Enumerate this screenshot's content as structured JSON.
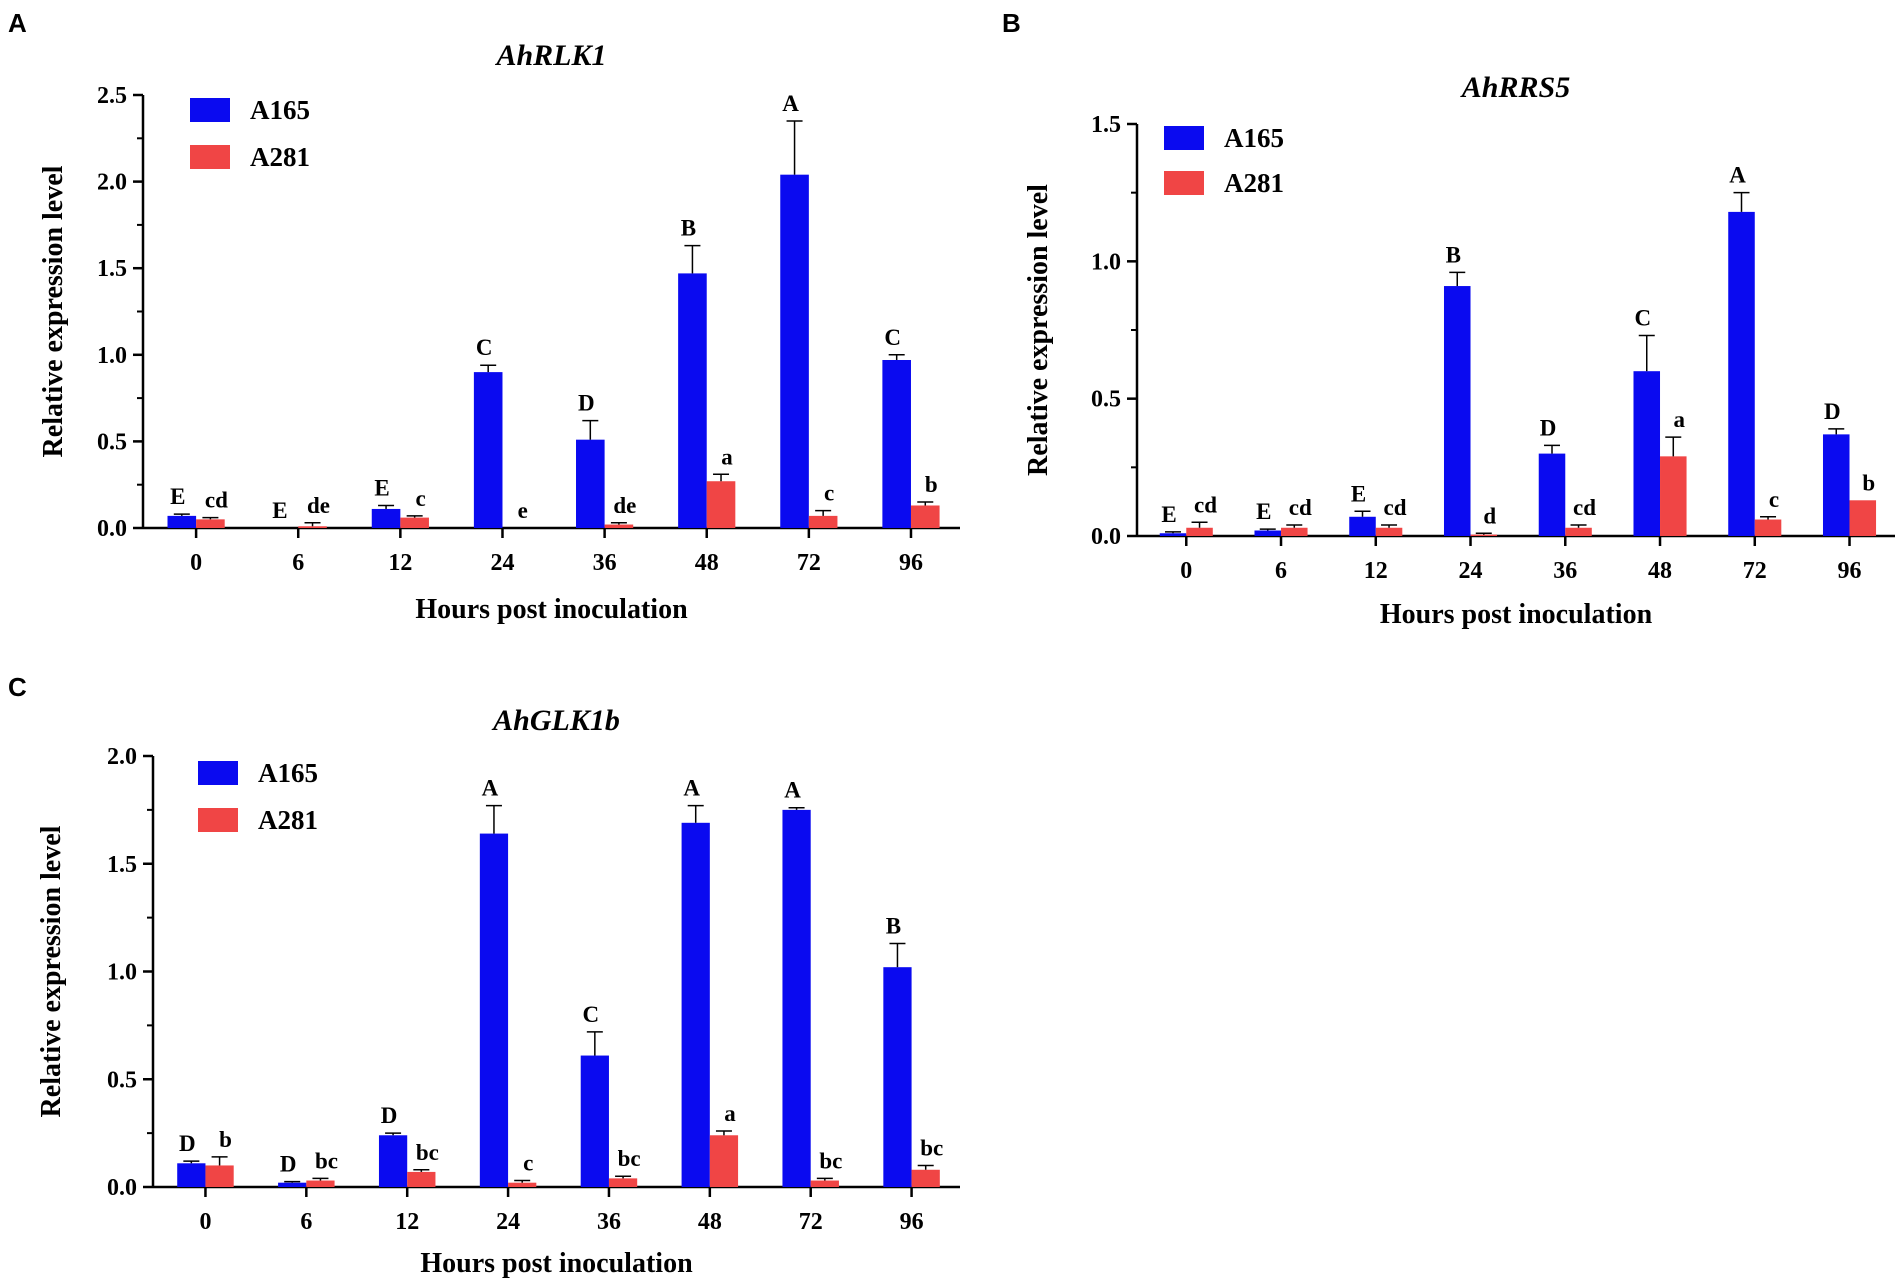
{
  "colors": {
    "A165": "#0a0af0",
    "A281": "#f04545",
    "axis": "#000000"
  },
  "chart_data": [
    {
      "panel": "A",
      "type": "bar",
      "title": "AhRLK1",
      "xlabel": "Hours post inoculation",
      "ylabel": "Relative expression level",
      "ylim": [
        0,
        2.5
      ],
      "yticks": [
        "0.0",
        "0.5",
        "1.0",
        "1.5",
        "2.0",
        "2.5"
      ],
      "categories": [
        "0",
        "6",
        "12",
        "24",
        "36",
        "48",
        "72",
        "96"
      ],
      "legend": "top-left",
      "series": [
        {
          "name": "A165",
          "values": [
            0.07,
            0.0,
            0.11,
            0.9,
            0.51,
            1.47,
            2.04,
            0.97
          ],
          "errors": [
            0.01,
            0.0,
            0.02,
            0.04,
            0.11,
            0.16,
            0.31,
            0.03
          ],
          "labels": [
            "E",
            "E",
            "E",
            "C",
            "D",
            "B",
            "A",
            "C"
          ]
        },
        {
          "name": "A281",
          "values": [
            0.05,
            0.01,
            0.06,
            0.0,
            0.02,
            0.27,
            0.07,
            0.13
          ],
          "errors": [
            0.01,
            0.02,
            0.01,
            0.0,
            0.01,
            0.04,
            0.03,
            0.02
          ],
          "labels": [
            "cd",
            "de",
            "c",
            "e",
            "de",
            "a",
            "c",
            "b"
          ]
        }
      ]
    },
    {
      "panel": "B",
      "type": "bar",
      "title": "AhRRS5",
      "xlabel": "Hours post inoculation",
      "ylabel": "Relative expression level",
      "ylim": [
        0,
        1.5
      ],
      "yticks": [
        "0.0",
        "0.5",
        "1.0",
        "1.5"
      ],
      "categories": [
        "0",
        "6",
        "12",
        "24",
        "36",
        "48",
        "72",
        "96"
      ],
      "legend": "top-left",
      "series": [
        {
          "name": "A165",
          "values": [
            0.01,
            0.02,
            0.07,
            0.91,
            0.3,
            0.6,
            1.18,
            0.37
          ],
          "errors": [
            0.005,
            0.005,
            0.02,
            0.05,
            0.03,
            0.13,
            0.07,
            0.02
          ],
          "labels": [
            "E",
            "E",
            "E",
            "B",
            "D",
            "C",
            "A",
            "D"
          ]
        },
        {
          "name": "A281",
          "values": [
            0.03,
            0.03,
            0.03,
            0.005,
            0.03,
            0.29,
            0.06,
            0.13
          ],
          "errors": [
            0.02,
            0.01,
            0.01,
            0.005,
            0.01,
            0.07,
            0.01,
            0.0
          ],
          "labels": [
            "cd",
            "cd",
            "cd",
            "d",
            "cd",
            "a",
            "c",
            "b"
          ]
        }
      ]
    },
    {
      "panel": "C",
      "type": "bar",
      "title": "AhGLK1b",
      "xlabel": "Hours post inoculation",
      "ylabel": "Relative expression level",
      "ylim": [
        0,
        2.0
      ],
      "yticks": [
        "0.0",
        "0.5",
        "1.0",
        "1.5",
        "2.0"
      ],
      "categories": [
        "0",
        "6",
        "12",
        "24",
        "36",
        "48",
        "72",
        "96"
      ],
      "legend": "top-left",
      "series": [
        {
          "name": "A165",
          "values": [
            0.11,
            0.02,
            0.24,
            1.64,
            0.61,
            1.69,
            1.75,
            1.02
          ],
          "errors": [
            0.01,
            0.005,
            0.01,
            0.13,
            0.11,
            0.08,
            0.01,
            0.11
          ],
          "labels": [
            "D",
            "D",
            "D",
            "A",
            "C",
            "A",
            "A",
            "B"
          ]
        },
        {
          "name": "A281",
          "values": [
            0.1,
            0.03,
            0.07,
            0.02,
            0.04,
            0.24,
            0.03,
            0.08
          ],
          "errors": [
            0.04,
            0.01,
            0.01,
            0.01,
            0.01,
            0.02,
            0.01,
            0.02
          ],
          "labels": [
            "b",
            "bc",
            "bc",
            "c",
            "bc",
            "a",
            "bc",
            "bc"
          ]
        }
      ]
    }
  ]
}
